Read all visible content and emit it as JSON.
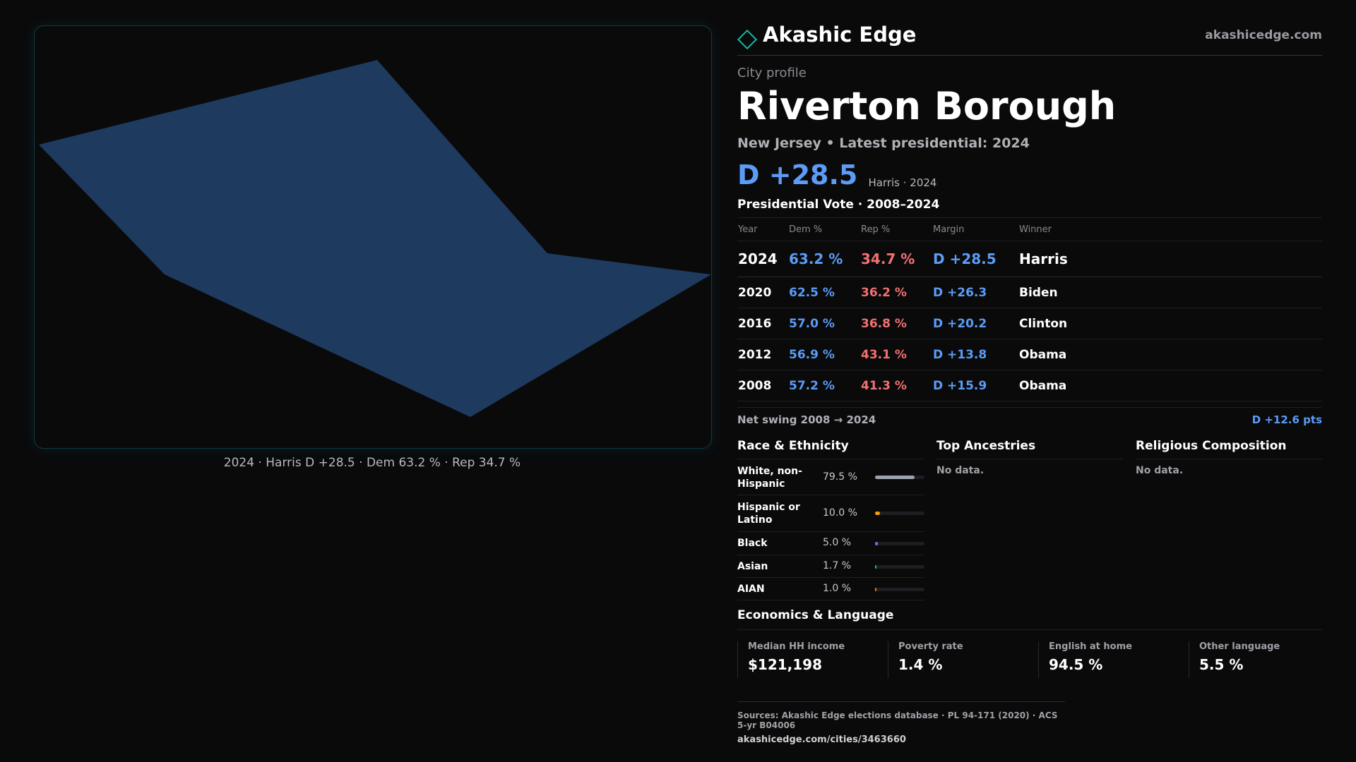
{
  "map": {
    "caption": "2024 · Harris D +28.5 · Dem 63.2 % · Rep 34.7 %",
    "fill_color": "#1f3a5f"
  },
  "brand": {
    "name": "Akashic Edge",
    "url": "akashicedge.com",
    "icon": "diamond-logo-icon",
    "accent": "#14b8a6"
  },
  "profile": {
    "kicker": "City profile",
    "city": "Riverton Borough",
    "subtitle": "New Jersey • Latest presidential: 2024",
    "margin": "D +28.5",
    "margin_note": "Harris · 2024"
  },
  "votes": {
    "title": "Presidential Vote · 2008–2024",
    "headers": [
      "Year",
      "Dem %",
      "Rep %",
      "Margin",
      "Winner"
    ],
    "rows": [
      {
        "year": "2024",
        "dem": "63.2 %",
        "rep": "34.7 %",
        "margin": "D +28.5",
        "winner": "Harris"
      },
      {
        "year": "2020",
        "dem": "62.5 %",
        "rep": "36.2 %",
        "margin": "D +26.3",
        "winner": "Biden"
      },
      {
        "year": "2016",
        "dem": "57.0 %",
        "rep": "36.8 %",
        "margin": "D +20.2",
        "winner": "Clinton"
      },
      {
        "year": "2012",
        "dem": "56.9 %",
        "rep": "43.1 %",
        "margin": "D +13.8",
        "winner": "Obama"
      },
      {
        "year": "2008",
        "dem": "57.2 %",
        "rep": "41.3 %",
        "margin": "D +15.9",
        "winner": "Obama"
      }
    ],
    "swing_label": "Net swing 2008 → 2024",
    "swing_value": "D +12.6 pts",
    "dem_color": "#5b9cf6",
    "rep_color": "#f47171"
  },
  "race": {
    "title": "Race & Ethnicity",
    "rows": [
      {
        "label": "White, non-Hispanic",
        "pct": "79.5 %",
        "value": 79.5,
        "color": "#9ca3af"
      },
      {
        "label": "Hispanic or Latino",
        "pct": "10.0 %",
        "value": 10.0,
        "color": "#f59e0b"
      },
      {
        "label": "Black",
        "pct": "5.0 %",
        "value": 5.0,
        "color": "#8b5cf6"
      },
      {
        "label": "Asian",
        "pct": "1.7 %",
        "value": 1.7,
        "color": "#14b8a6"
      },
      {
        "label": "AIAN",
        "pct": "1.0 %",
        "value": 1.0,
        "color": "#f97316"
      }
    ]
  },
  "ancestries": {
    "title": "Top Ancestries",
    "empty": "No data."
  },
  "religion": {
    "title": "Religious Composition",
    "empty": "No data."
  },
  "economics": {
    "title": "Economics & Language",
    "cells": [
      {
        "label": "Median HH income",
        "value": "$121,198"
      },
      {
        "label": "Poverty rate",
        "value": "1.4 %"
      },
      {
        "label": "English at home",
        "value": "94.5 %"
      },
      {
        "label": "Other language",
        "value": "5.5 %"
      }
    ]
  },
  "footer": {
    "sources": "Sources: Akashic Edge elections database · PL 94-171 (2020) · ACS 5-yr B04006",
    "url": "akashicedge.com/cities/3463660"
  }
}
